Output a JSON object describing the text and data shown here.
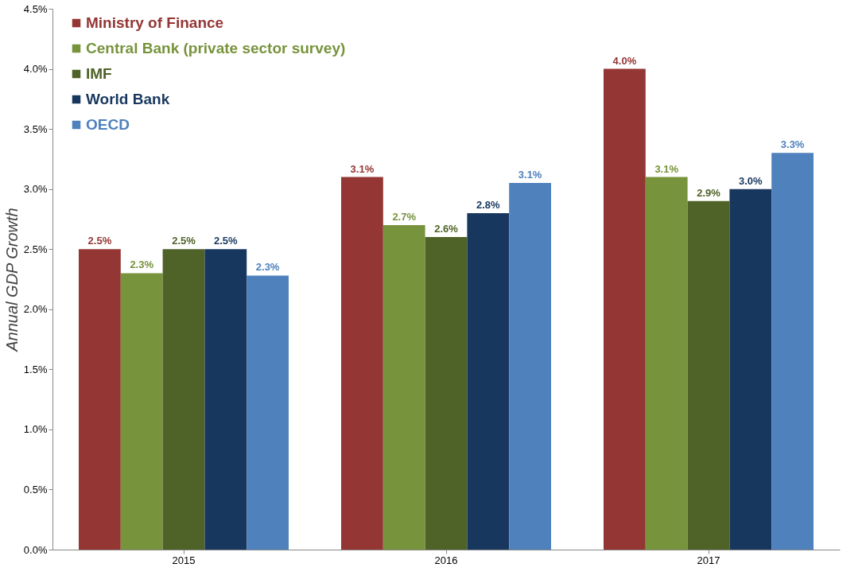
{
  "chart_data": {
    "type": "bar",
    "ylabel": "Annual GDP Growth",
    "categories": [
      "2015",
      "2016",
      "2017"
    ],
    "series": [
      {
        "name": "Ministry of Finance",
        "color": "#943634",
        "values": [
          2.5,
          3.1,
          4.0
        ],
        "value_labels": [
          "2.5%",
          "3.1%",
          "4.0%"
        ]
      },
      {
        "name": "Central Bank (private sector survey)",
        "color": "#77933c",
        "values": [
          2.3,
          2.7,
          3.1
        ],
        "value_labels": [
          "2.3%",
          "2.7%",
          "3.1%"
        ]
      },
      {
        "name": "IMF",
        "color": "#4f6228",
        "values": [
          2.5,
          2.6,
          2.9
        ],
        "value_labels": [
          "2.5%",
          "2.6%",
          "2.9%"
        ]
      },
      {
        "name": "World Bank",
        "color": "#17375e",
        "values": [
          2.5,
          2.8,
          3.0
        ],
        "value_labels": [
          "2.5%",
          "2.8%",
          "3.0%"
        ]
      },
      {
        "name": "OECD",
        "color": "#4f81bd",
        "values": [
          2.28,
          3.05,
          3.3
        ],
        "value_labels": [
          "2.3%",
          "3.1%",
          "3.3%"
        ]
      }
    ],
    "ylim": [
      0,
      4.5
    ],
    "yticks": [
      {
        "value": 0,
        "label": "0.0%"
      },
      {
        "value": 0.5,
        "label": "0.5%"
      },
      {
        "value": 1,
        "label": "1.0%"
      },
      {
        "value": 1.5,
        "label": "1.5%"
      },
      {
        "value": 2,
        "label": "2.0%"
      },
      {
        "value": 2.5,
        "label": "2.5%"
      },
      {
        "value": 3,
        "label": "3.0%"
      },
      {
        "value": 3.5,
        "label": "3.5%"
      },
      {
        "value": 4,
        "label": "4.0%"
      },
      {
        "value": 4.5,
        "label": "4.5%"
      }
    ],
    "grid": false,
    "legend": "top left"
  }
}
